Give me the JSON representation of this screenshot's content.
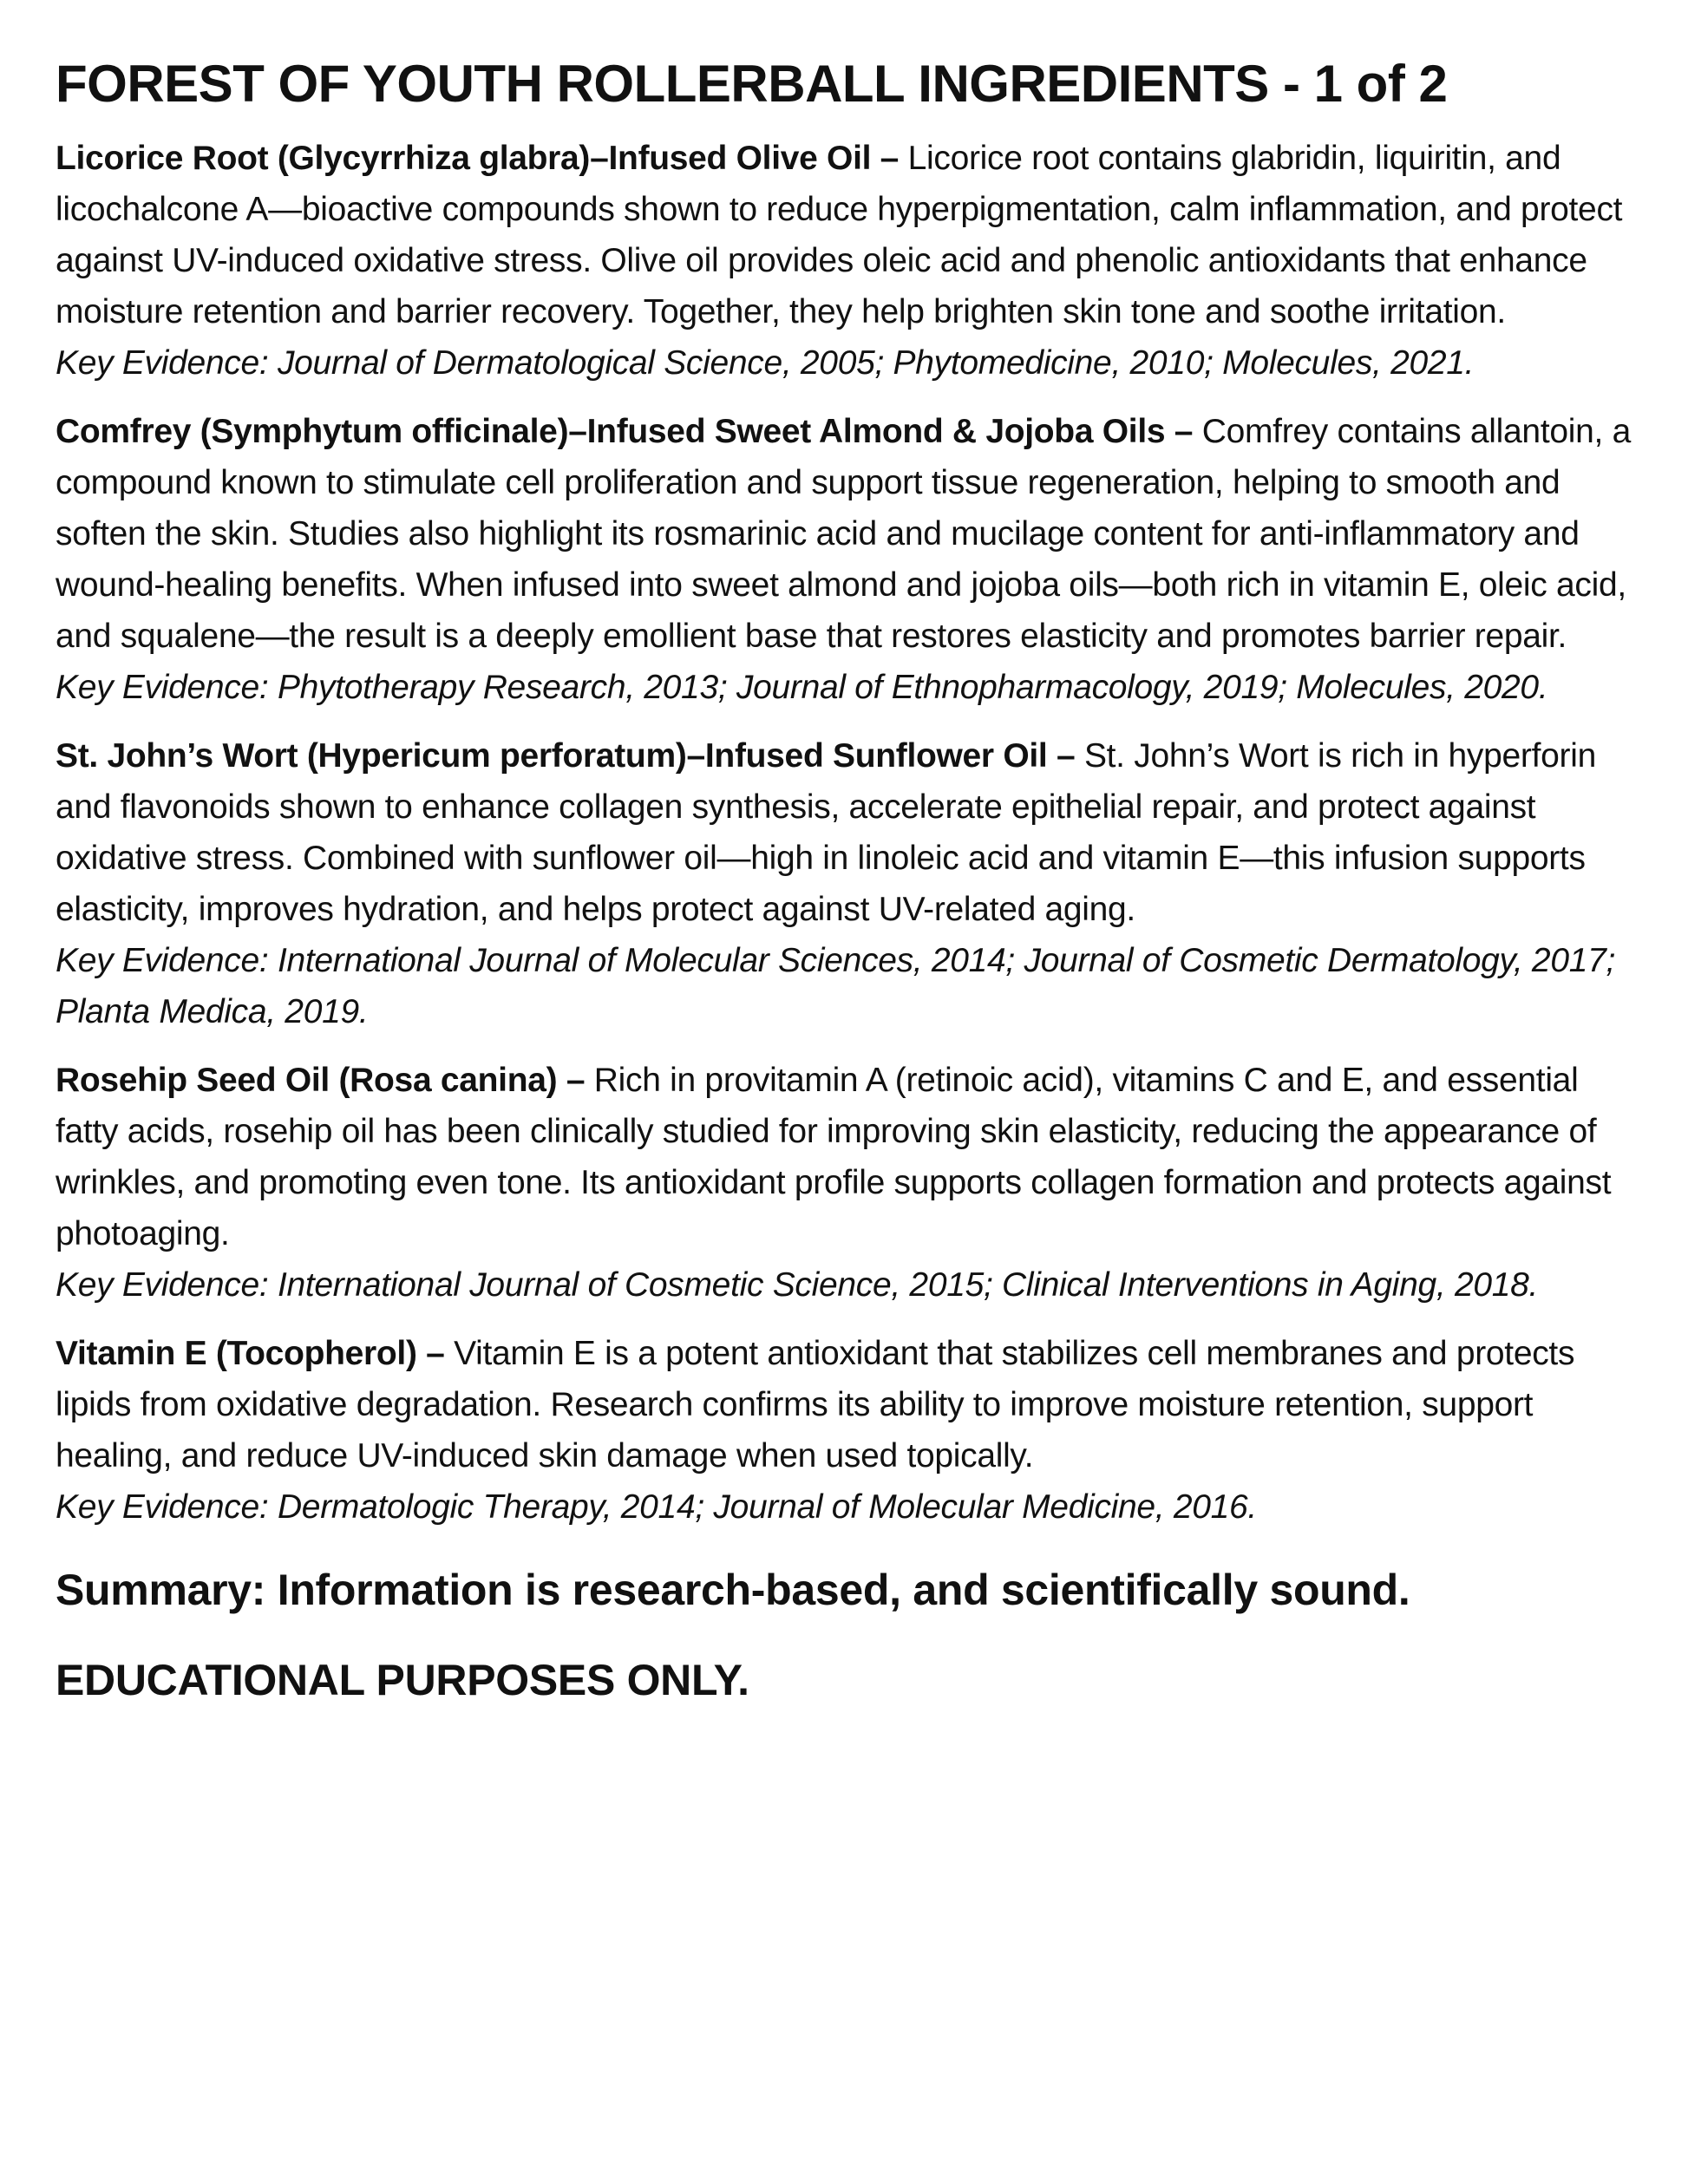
{
  "title": "FOREST OF YOUTH ROLLERBALL INGREDIENTS - 1 of 2",
  "ingredients": [
    {
      "name": "Licorice Root (Glycyrrhiza glabra)–Infused Olive Oil –",
      "description": "Licorice root contains glabridin, liquiritin, and licochalcone A—bioactive compounds shown to reduce hyperpigmentation, calm inflammation, and protect against UV-induced oxidative stress. Olive oil provides oleic acid and phenolic antioxidants that enhance moisture retention and barrier recovery. Together, they help brighten skin tone and soothe irritation.",
      "evidence": "Key Evidence: Journal of Dermatological Science, 2005; Phytomedicine, 2010; Molecules, 2021."
    },
    {
      "name": "Comfrey (Symphytum officinale)–Infused Sweet Almond & Jojoba Oils –",
      "description": "Comfrey contains allantoin, a compound known to stimulate cell proliferation and support tissue regeneration, helping to smooth and soften the skin. Studies also highlight its rosmarinic acid and mucilage content for anti-inflammatory and wound-healing benefits. When infused into sweet almond and jojoba oils—both rich in vitamin E, oleic acid, and squalene—the result is a deeply emollient base that restores elasticity and promotes barrier repair.",
      "evidence": "Key Evidence: Phytotherapy Research, 2013; Journal of Ethnopharmacology, 2019; Molecules, 2020."
    },
    {
      "name": "St. John’s Wort (Hypericum perforatum)–Infused Sunflower Oil –",
      "description": "St. John’s Wort is rich in hyperforin and flavonoids shown to enhance collagen synthesis, accelerate epithelial repair, and protect against oxidative stress. Combined with sunflower oil—high in linoleic acid and vitamin E—this infusion supports elasticity, improves hydration, and helps protect against UV-related aging.",
      "evidence": "Key Evidence: International Journal of Molecular Sciences, 2014; Journal of Cosmetic Dermatology, 2017; Planta Medica, 2019."
    },
    {
      "name": "Rosehip Seed Oil (Rosa canina) –",
      "description": "Rich in provitamin A (retinoic acid), vitamins C and E, and essential fatty acids, rosehip oil has been clinically studied for improving skin elasticity, reducing the appearance of wrinkles, and promoting even tone. Its antioxidant profile supports collagen formation and protects against photoaging.",
      "evidence": "Key Evidence: International Journal of Cosmetic Science, 2015; Clinical Interventions in Aging, 2018."
    },
    {
      "name": "Vitamin E (Tocopherol) –",
      "description": "Vitamin E is a potent antioxidant that stabilizes cell membranes and protects lipids from oxidative degradation. Research confirms its ability to improve moisture retention, support healing, and reduce UV-induced skin damage when used topically.",
      "evidence": "Key Evidence: Dermatologic Therapy, 2014; Journal of Molecular Medicine, 2016."
    }
  ],
  "summary": "Summary: Information is research-based, and scientifically sound.",
  "disclaimer": "EDUCATIONAL PURPOSES ONLY."
}
